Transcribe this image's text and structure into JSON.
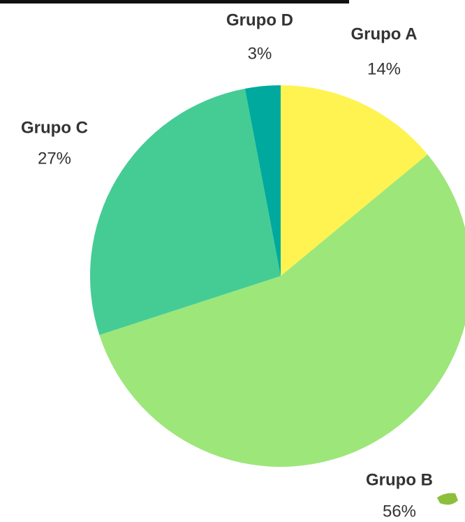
{
  "chart_data": {
    "type": "pie",
    "categories": [
      "Grupo A",
      "Grupo B",
      "Grupo C",
      "Grupo D"
    ],
    "values": [
      14,
      56,
      27,
      3
    ],
    "value_labels": [
      "14%",
      "56%",
      "27%",
      "3%"
    ],
    "colors": [
      "#fff352",
      "#9de67a",
      "#45cc94",
      "#00a99d"
    ]
  }
}
